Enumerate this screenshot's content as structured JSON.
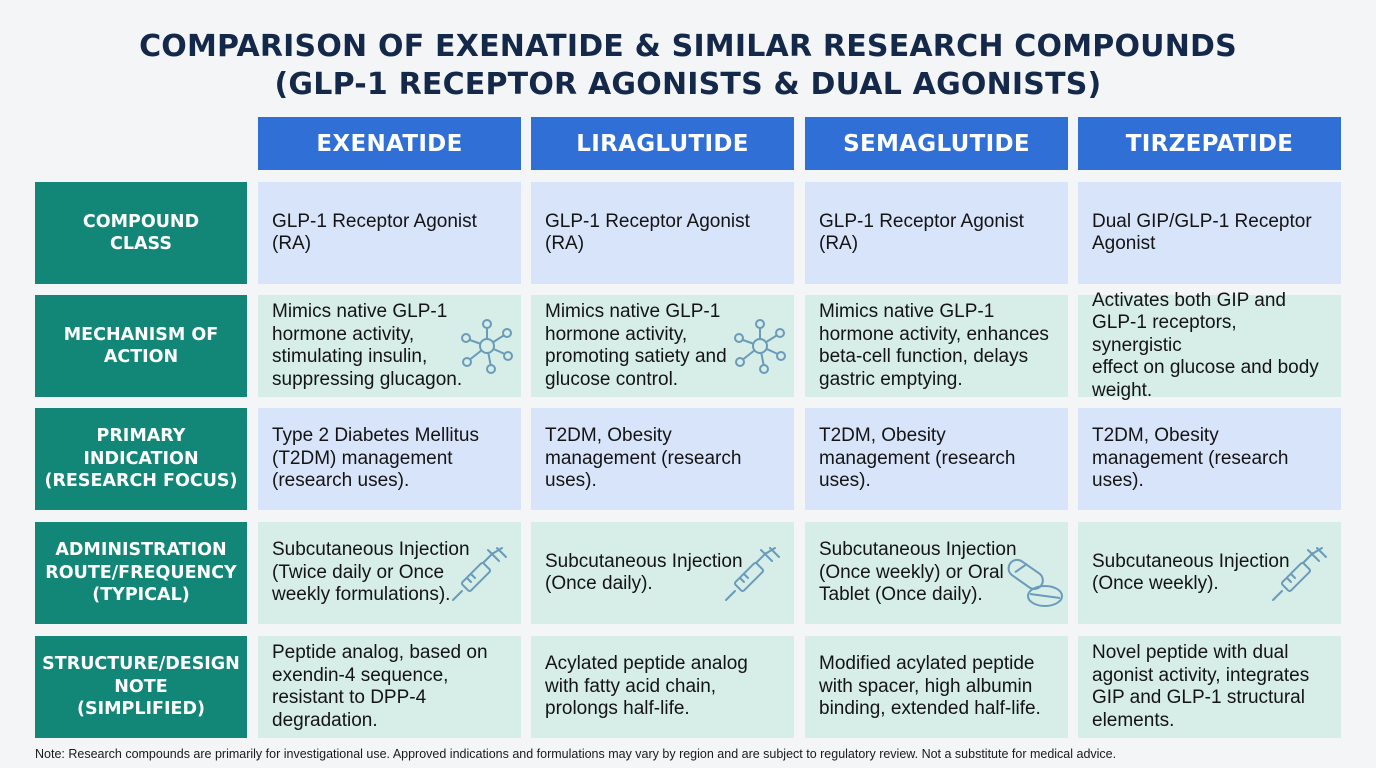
{
  "title": {
    "line1": "COMPARISON OF EXENATIDE & SIMILAR RESEARCH COMPOUNDS",
    "line2": "(GLP-1 RECEPTOR AGONISTS & DUAL AGONISTS)"
  },
  "columns": [
    "EXENATIDE",
    "LIRAGLUTIDE",
    "SEMAGLUTIDE",
    "TIRZEPATIDE"
  ],
  "rows": [
    {
      "header": [
        "COMPOUND",
        "CLASS"
      ],
      "cells": [
        [
          "GLP-1 Receptor Agonist",
          "(RA)"
        ],
        [
          "GLP-1 Receptor Agonist",
          "(RA)"
        ],
        [
          "GLP-1 Receptor Agonist",
          "(RA)"
        ],
        [
          "Dual GIP/GLP-1 Receptor",
          "Agonist"
        ]
      ]
    },
    {
      "header": [
        "MECHANISM OF",
        "ACTION"
      ],
      "cells": [
        [
          "Mimics native GLP-1",
          "hormone activity,",
          "stimulating insulin,",
          "suppressing glucagon."
        ],
        [
          "Mimics native GLP-1",
          "hormone activity,",
          "promoting satiety and",
          "glucose control."
        ],
        [
          "Mimics native GLP-1",
          "hormone activity, enhances",
          "beta-cell function, delays",
          "gastric emptying."
        ],
        [
          "Activates both GIP and",
          "GLP-1 receptors, synergistic",
          "effect on glucose and body",
          "weight."
        ]
      ]
    },
    {
      "header": [
        "PRIMARY",
        "INDICATION",
        "(RESEARCH FOCUS)"
      ],
      "cells": [
        [
          "Type 2 Diabetes Mellitus",
          "(T2DM) management",
          "(research uses)."
        ],
        [
          "T2DM, Obesity",
          "management (research",
          "uses)."
        ],
        [
          "T2DM, Obesity",
          "management (research",
          "uses)."
        ],
        [
          "T2DM, Obesity",
          "management (research",
          "uses)."
        ]
      ]
    },
    {
      "header": [
        "ADMINISTRATION",
        "ROUTE/FREQUENCY",
        "(TYPICAL)"
      ],
      "cells": [
        [
          "Subcutaneous Injection",
          "(Twice daily or Once",
          "weekly formulations)."
        ],
        [
          "Subcutaneous Injection",
          "(Once daily)."
        ],
        [
          "Subcutaneous Injection",
          "(Once weekly) or Oral",
          "Tablet (Once daily)."
        ],
        [
          "Subcutaneous Injection",
          "(Once weekly)."
        ]
      ]
    },
    {
      "header": [
        "STRUCTURE/DESIGN",
        "NOTE",
        "(SIMPLIFIED)"
      ],
      "cells": [
        [
          "Peptide analog, based on",
          "exendin-4 sequence,",
          "resistant to DPP-4",
          "degradation."
        ],
        [
          "Acylated peptide analog",
          "with fatty acid chain,",
          "prolongs half-life."
        ],
        [
          "Modified acylated peptide",
          "with spacer, high albumin",
          "binding, extended half-life."
        ],
        [
          "Novel peptide with dual",
          "agonist activity, integrates",
          "GIP and GLP-1 structural",
          "elements."
        ]
      ]
    }
  ],
  "icons": {
    "mechanism_exenatide": "molecule-network-icon",
    "mechanism_liraglutide": "molecule-network-icon",
    "route_exenatide": "syringe-icon",
    "route_liraglutide": "syringe-icon",
    "route_semaglutide": "capsule-tablet-icon",
    "route_tirzepatide": "syringe-icon"
  },
  "note": "Note: Research compounds are primarily for investigational use. Approved indications and formulations may vary by region and are subject to regulatory review. Not a substitute for medical advice.",
  "colors": {
    "title": "#14284a",
    "column_header": "#2f6fd6",
    "row_header": "#128777",
    "cell_blue": "#d8e4fa",
    "cell_green": "#d6ede8",
    "icon": "#6a9bb8"
  }
}
